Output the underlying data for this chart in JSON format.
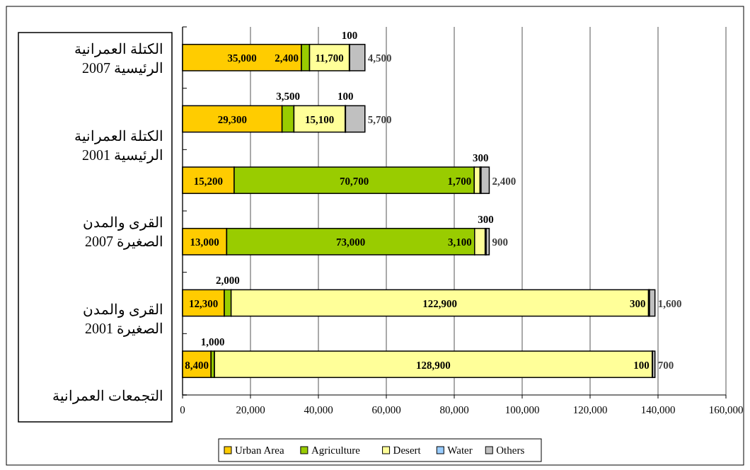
{
  "chart_data": {
    "type": "bar",
    "orientation": "horizontal",
    "stacked": true,
    "categories": [
      null,
      null,
      null,
      null,
      null,
      null
    ],
    "series": [
      {
        "name": "Urban Area",
        "color": "#ffcc00",
        "values": [
          35000,
          29300,
          15200,
          13000,
          12300,
          8400
        ],
        "value_labels": [
          "35,000",
          "29,300",
          "15,200",
          "13,000",
          "12,300",
          "8,400"
        ]
      },
      {
        "name": "Agriculture",
        "color": "#99cc00",
        "values": [
          2400,
          3500,
          70700,
          73000,
          2000,
          1000
        ],
        "value_labels": [
          "2,400",
          "3,500",
          "70,700",
          "73,000",
          "2,000",
          "1,000"
        ]
      },
      {
        "name": "Desert",
        "color": "#ffff99",
        "values": [
          11700,
          15100,
          1700,
          3100,
          122900,
          128900
        ],
        "value_labels": [
          "11,700",
          "15,100",
          "1,700",
          "3,100",
          "122,900",
          "128,900"
        ]
      },
      {
        "name": "Water",
        "color": "#99ccff",
        "values": [
          100,
          100,
          300,
          300,
          300,
          100
        ],
        "value_labels": [
          "100",
          "100",
          "300",
          "300",
          "300",
          "100"
        ]
      },
      {
        "name": "Others",
        "color": "#c0c0c0",
        "values": [
          4500,
          5700,
          2400,
          900,
          1600,
          700
        ],
        "value_labels": [
          "4,500",
          "5,700",
          "2,400",
          "900",
          "1,600",
          "700"
        ]
      }
    ],
    "xlim": [
      0,
      160000
    ],
    "xticks": [
      {
        "value": 0,
        "label": "0"
      },
      {
        "value": 20000,
        "label": "20,000"
      },
      {
        "value": 40000,
        "label": "40,000"
      },
      {
        "value": 60000,
        "label": "60,000"
      },
      {
        "value": 80000,
        "label": "80,000"
      },
      {
        "value": 100000,
        "label": "100,000"
      },
      {
        "value": 120000,
        "label": "120,000"
      },
      {
        "value": 140000,
        "label": "140,000"
      },
      {
        "value": 160000,
        "label": "160,000"
      }
    ],
    "grid": "x",
    "legend": "bottom",
    "annotations": [
      "الكتلة العمرانية الرئيسية 2007",
      "الكتلة العمرانية الرئيسية 2001",
      "القرى والمدن الصغيرة 2007",
      "القرى والمدن الصغيرة 2001",
      "التجمعات العمرانية"
    ]
  }
}
